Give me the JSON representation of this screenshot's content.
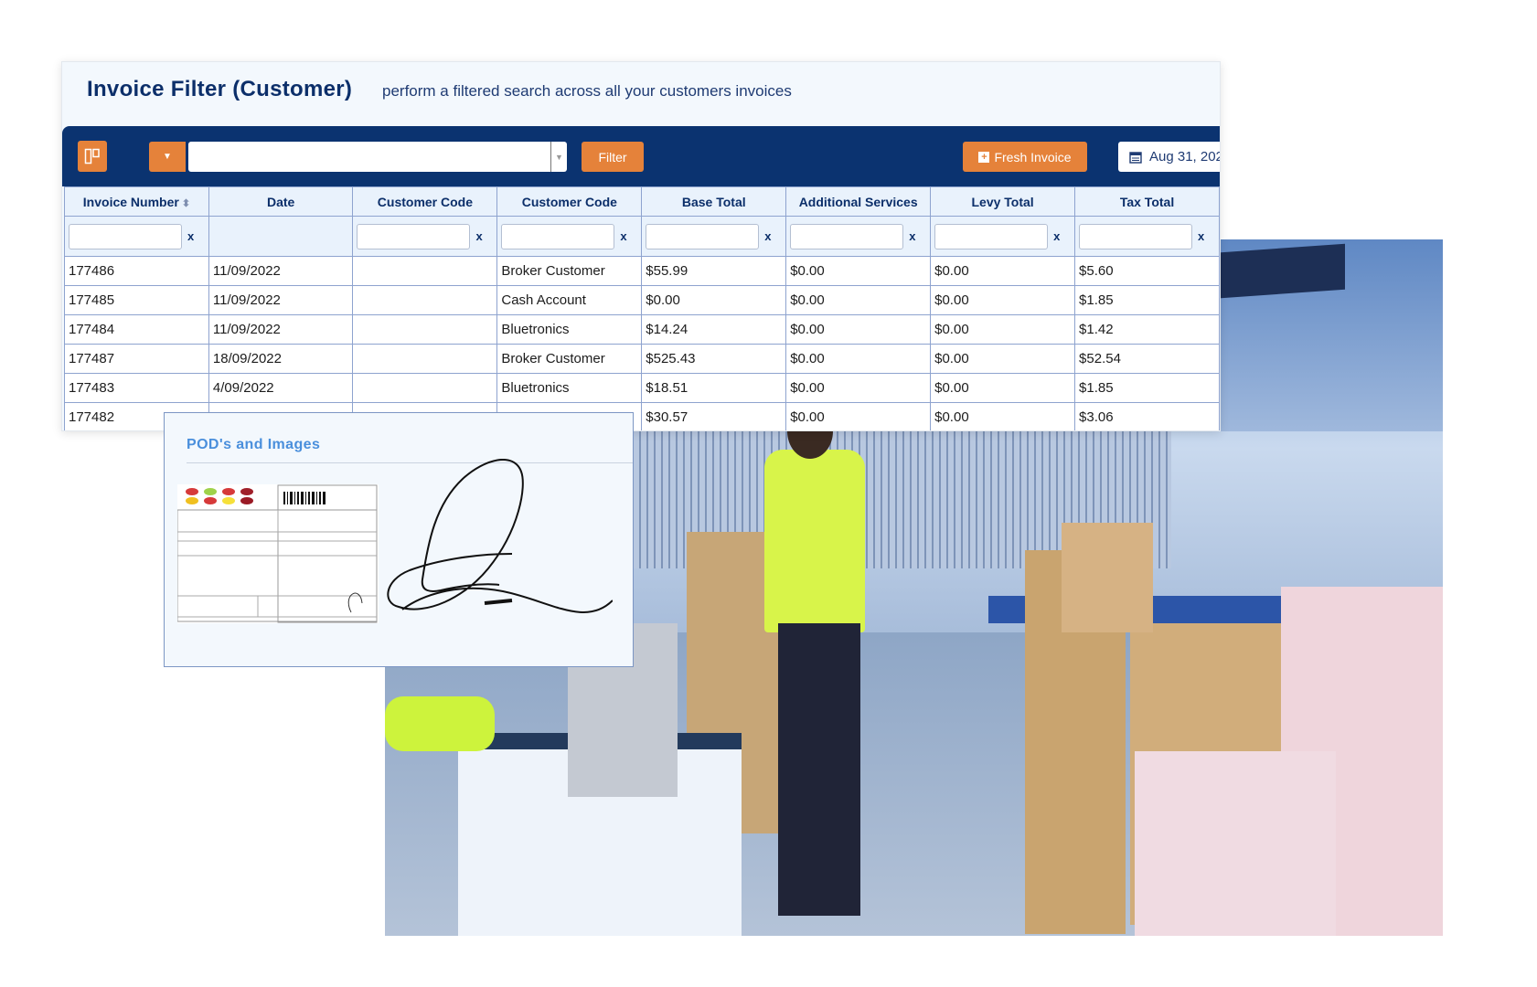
{
  "header": {
    "title": "Invoice Filter (Customer)",
    "subtitle": "perform a filtered search across all your customers invoices"
  },
  "toolbar": {
    "filter_label": "Filter",
    "search_value": "",
    "new_label": "Fresh Invoice",
    "date_value": "Aug 31, 202"
  },
  "table": {
    "columns": [
      "Invoice Number",
      "Date",
      "Customer Code",
      "Customer Code",
      "Base Total",
      "Additional Services",
      "Levy Total",
      "Tax Total"
    ],
    "clear_label": "x",
    "rows": [
      [
        "177486",
        "11/09/2022",
        "",
        "Broker Customer",
        "$55.99",
        "$0.00",
        "$0.00",
        "$5.60"
      ],
      [
        "177485",
        "11/09/2022",
        "",
        "Cash Account",
        "$0.00",
        "$0.00",
        "$0.00",
        "$1.85"
      ],
      [
        "177484",
        "11/09/2022",
        "",
        "Bluetronics",
        "$14.24",
        "$0.00",
        "$0.00",
        "$1.42"
      ],
      [
        "177487",
        "18/09/2022",
        "",
        "Broker Customer",
        "$525.43",
        "$0.00",
        "$0.00",
        "$52.54"
      ],
      [
        "177483",
        "4/09/2022",
        "",
        "Bluetronics",
        "$18.51",
        "$0.00",
        "$0.00",
        "$1.85"
      ],
      [
        "177482",
        "",
        "",
        "",
        "$30.57",
        "$0.00",
        "$0.00",
        "$3.06"
      ]
    ]
  },
  "pod": {
    "title": "POD's and Images"
  },
  "colors": {
    "navy": "#0b3370",
    "orange": "#e5823a",
    "pod_title": "#4a8fdc"
  }
}
